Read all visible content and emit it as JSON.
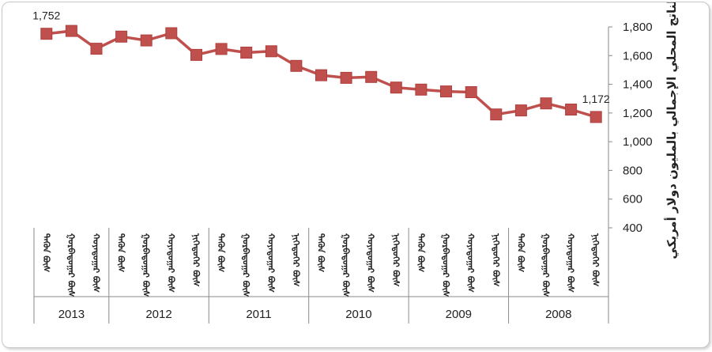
{
  "chart_data": {
    "type": "line",
    "ylabel": "الناتج المحلي الإجمالي بالمليون دولار أمريكي",
    "yticks": [
      "1,800",
      "1,600",
      "1,400",
      "1,200",
      "1,000",
      "800",
      "600",
      "400"
    ],
    "ylim": [
      400,
      1800
    ],
    "x_reversed": true,
    "y_axis_side": "right",
    "grid": false,
    "legend": "none",
    "color": "#c0504d",
    "years": [
      {
        "label": "2013",
        "quarters": [
          "ᠳᠡᠭᠦᠨ ᠪᠦᠰ",
          "ᠭᠤᠷᠪᠠᠳᠤᠭᠠᠷ ᠪᠦᠰ",
          "ᠬᠣᠶᠠᠳᠤᠭᠠᠷ ᠪᠦᠰ"
        ]
      },
      {
        "label": "2012",
        "quarters": [
          "ᠳᠡᠭᠦᠨ ᠪᠦᠰ",
          "ᠭᠤᠷᠪᠠᠳᠤᠭᠠᠷ ᠪᠦᠰ",
          "ᠬᠣᠶᠠᠳᠤᠭᠠᠷ ᠪᠦᠰ",
          "ᠨᠢᠭᠡᠳᠦᠭᠡᠷ ᠪᠦᠰ"
        ]
      },
      {
        "label": "2011",
        "quarters": [
          "ᠳᠡᠭᠦᠨ ᠪᠦᠰ",
          "ᠭᠤᠷᠪᠠᠳᠤᠭᠠᠷ ᠪᠦᠰ",
          "ᠬᠣᠶᠠᠳᠤᠭᠠᠷ ᠪᠦᠰ",
          "ᠨᠢᠭᠡᠳᠦᠭᠡᠷ ᠪᠦᠰ"
        ]
      },
      {
        "label": "2010",
        "quarters": [
          "ᠳᠡᠭᠦᠨ ᠪᠦᠰ",
          "ᠭᠤᠷᠪᠠᠳᠤᠭᠠᠷ ᠪᠦᠰ",
          "ᠬᠣᠶᠠᠳᠤᠭᠠᠷ ᠪᠦᠰ",
          "ᠨᠢᠭᠡᠳᠦᠭᠡᠷ ᠪᠦᠰ"
        ]
      },
      {
        "label": "2009",
        "quarters": [
          "ᠳᠡᠭᠦᠨ ᠪᠦᠰ",
          "ᠭᠤᠷᠪᠠᠳᠤᠭᠠᠷ ᠪᠦᠰ",
          "ᠬᠣᠶᠠᠳᠤᠭᠠᠷ ᠪᠦᠰ",
          "ᠨᠢᠭᠡᠳᠦᠭᠡᠷ ᠪᠦᠰ"
        ]
      },
      {
        "label": "2008",
        "quarters": [
          "ᠳᠡᠭᠦᠨ ᠪᠦᠰ",
          "ᠭᠤᠷᠪᠠᠳᠤᠭᠠᠷ ᠪᠦᠰ",
          "ᠬᠣᠶᠠᠳᠤᠭᠠᠷ ᠪᠦᠰ",
          "ᠨᠢᠭᠡᠳᠦᠭᠡᠷ ᠪᠦᠰ"
        ]
      }
    ],
    "values": [
      1752,
      1772,
      1648,
      1732,
      1706,
      1756,
      1605,
      1646,
      1621,
      1630,
      1528,
      1463,
      1445,
      1451,
      1377,
      1363,
      1350,
      1345,
      1190,
      1218,
      1267,
      1224,
      1172
    ],
    "data_labels": [
      {
        "index": 0,
        "text": "1,752"
      },
      {
        "index": 22,
        "text": "1,172"
      }
    ]
  }
}
